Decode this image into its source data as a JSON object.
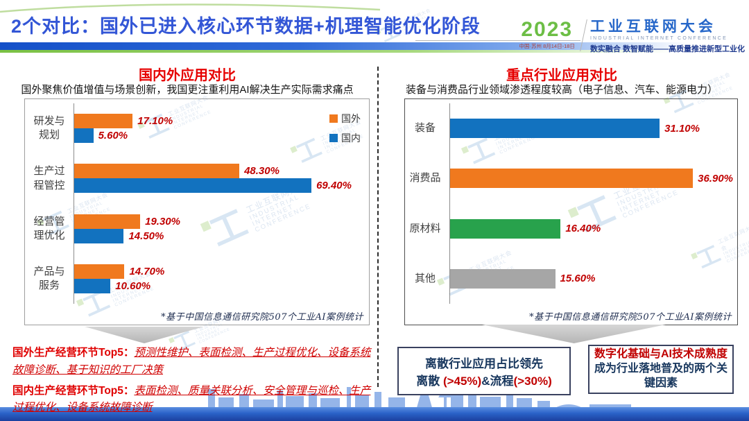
{
  "header": {
    "title": "2个对比：国外已进入核心环节数据+机理智能优化阶段",
    "logo": {
      "year": "2023",
      "venue": "中国·苏州 8月14日-18日",
      "name_cn": "工业互联网大会",
      "name_en": "INDUSTRIAL INTERNET CONFERENCE",
      "slogan": "数实融合 数智赋能——高质量推进新型工业化"
    }
  },
  "left_panel": {
    "title": "国内外应用对比",
    "subtitle": "国外聚焦价值增值与场景创新，我国更注重利用AI解决生产实际需求痛点"
  },
  "right_panel": {
    "title": "重点行业应用对比",
    "subtitle": "装备与消费品行业领域渗透程度较高（电子信息、汽车、能源电力）"
  },
  "chart_data": [
    {
      "type": "bar",
      "orientation": "horizontal",
      "title": "国内外应用对比",
      "categories": [
        "研发与规划",
        "生产过程管控",
        "经营管理优化",
        "产品与服务"
      ],
      "categories_display": [
        "研发与\n规划",
        "生产过\n程管控",
        "经营管\n理优化",
        "产品与\n服务"
      ],
      "series": [
        {
          "name": "国外",
          "color": "#f0791e",
          "values": [
            17.1,
            48.3,
            19.3,
            14.7
          ]
        },
        {
          "name": "国内",
          "color": "#1272bf",
          "values": [
            5.6,
            69.4,
            14.5,
            10.6
          ]
        }
      ],
      "value_suffix": "%",
      "xlim": [
        0,
        85
      ],
      "grid": false,
      "legend_position": "top-right",
      "footnote": "*基于中国信息通信研究院507个工业AI案例统计"
    },
    {
      "type": "bar",
      "orientation": "horizontal",
      "title": "重点行业应用对比",
      "categories": [
        "装备",
        "消费品",
        "原材料",
        "其他"
      ],
      "values": [
        31.1,
        36.9,
        16.4,
        15.6
      ],
      "colors": [
        "#1272bf",
        "#f0791e",
        "#28a24c",
        "#a6a6a6"
      ],
      "value_suffix": "%",
      "xlim": [
        0,
        42
      ],
      "grid": false,
      "footnote": "*基于中国信息通信研究院507个工业AI案例统计"
    }
  ],
  "bottom_left": {
    "line1_label": "国外生产经营环节Top5：",
    "line1_text": "预测性维护、表面检测、生产过程优化、设备系统故障诊断、基于知识的工厂决策",
    "line2_label": "国内生产经营环节Top5：",
    "line2_text": "表面检测、质量关联分析、安全管理与巡检、生产过程优化、设备系统故障诊断"
  },
  "bottom_right": {
    "box1": {
      "line1": "离散行业应用占比领先",
      "line2_parts": [
        "离散 ",
        "(>45%)",
        "&流程",
        "(>30%)"
      ]
    },
    "box2": {
      "line1": "数字化基础与AI技术成熟度",
      "line2": "成为行业落地普及的两个关键因素"
    }
  },
  "watermark": {
    "cn": "工业互联网大会",
    "en1": "INDUSTRIAL",
    "en2": "INTERNET",
    "en3": "CONFERENCE",
    "glyph": "工"
  },
  "colors": {
    "title_blue": "#3356d6",
    "section_red": "#e60000",
    "value_red": "#c00000",
    "navy_text": "#17365d",
    "bar_orange": "#f0791e",
    "bar_blue": "#1272bf",
    "bar_green": "#28a24c",
    "bar_gray": "#a6a6a6",
    "logo_green": "#6cbe45",
    "band_blue": "#1450c8",
    "band_green": "#7ac143"
  }
}
